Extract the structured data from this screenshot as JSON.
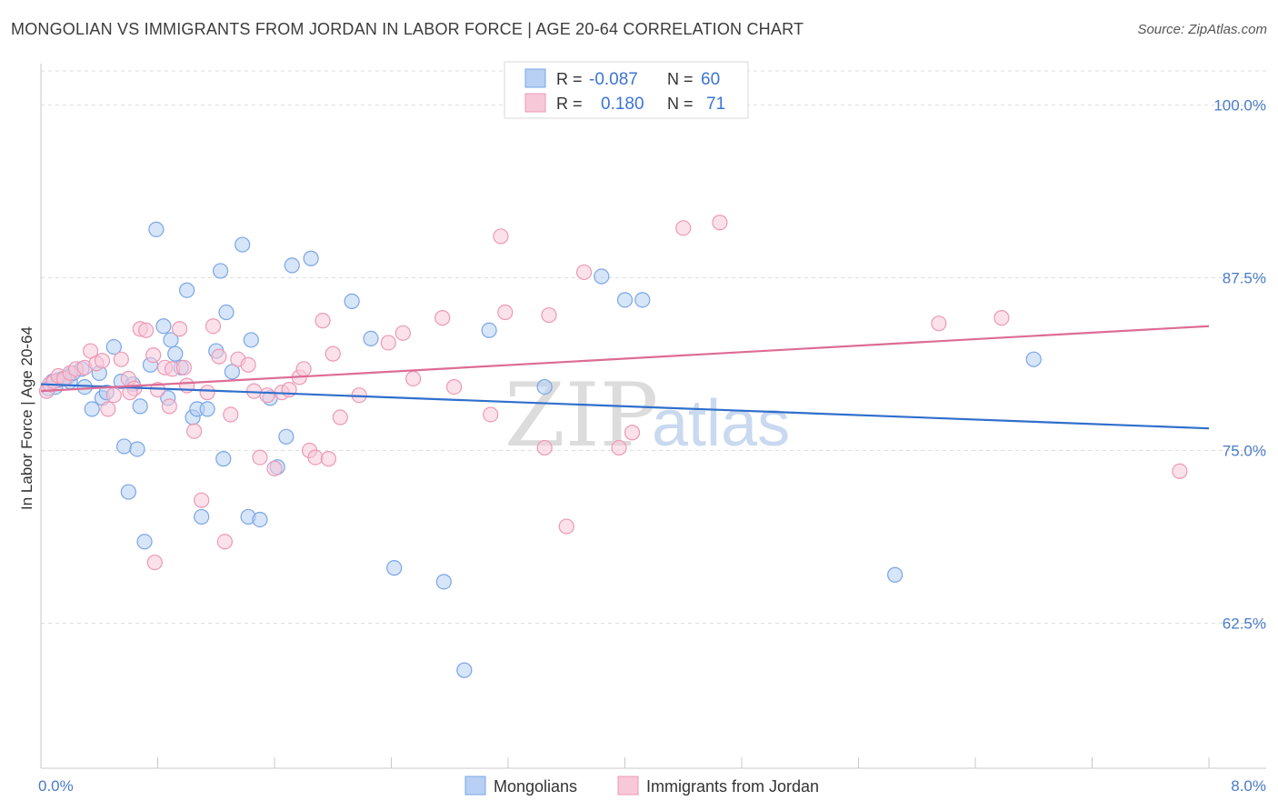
{
  "title": "MONGOLIAN VS IMMIGRANTS FROM JORDAN IN LABOR FORCE | AGE 20-64 CORRELATION CHART",
  "source": "Source: ZipAtlas.com",
  "watermark": {
    "zip": "ZIP",
    "atlas": "atlas"
  },
  "legend_top": [
    {
      "r_label": "R =",
      "r_value": "-0.087",
      "n_label": "N =",
      "n_value": "60"
    },
    {
      "r_label": "R =",
      "r_value": "0.180",
      "n_label": "N =",
      "n_value": "71"
    }
  ],
  "chart_data": {
    "type": "scatter",
    "ylabel": "In Labor Force | Age 20-64",
    "xlim": [
      0,
      8
    ],
    "ylim": [
      52,
      103
    ],
    "x_tick_labels": [
      "0.0%",
      "8.0%"
    ],
    "y_ticks": [
      100,
      87.5,
      75,
      62.5
    ],
    "y_tick_labels": [
      "100.0%",
      "87.5%",
      "75.0%",
      "62.5%"
    ],
    "grid": true,
    "series": [
      {
        "name": "Mongolians",
        "color": "#7aa6e8",
        "fill": "#b7d0f3",
        "trend_color": "#2f6fcc",
        "trend": {
          "x": [
            0,
            8
          ],
          "y": [
            79.8,
            76.6
          ]
        },
        "points": [
          [
            0.05,
            79.5
          ],
          [
            0.08,
            80.0
          ],
          [
            0.1,
            79.6
          ],
          [
            0.12,
            80.1
          ],
          [
            0.15,
            80.2
          ],
          [
            0.18,
            80.3
          ],
          [
            0.2,
            80.0
          ],
          [
            0.22,
            80.6
          ],
          [
            0.28,
            80.9
          ],
          [
            0.3,
            79.6
          ],
          [
            0.35,
            78.0
          ],
          [
            0.4,
            80.6
          ],
          [
            0.42,
            78.8
          ],
          [
            0.45,
            79.2
          ],
          [
            0.5,
            82.5
          ],
          [
            0.55,
            80.0
          ],
          [
            0.57,
            75.3
          ],
          [
            0.6,
            72.0
          ],
          [
            0.63,
            79.8
          ],
          [
            0.66,
            75.1
          ],
          [
            0.68,
            78.2
          ],
          [
            0.71,
            68.4
          ],
          [
            0.75,
            81.2
          ],
          [
            0.79,
            91.0
          ],
          [
            0.84,
            84.0
          ],
          [
            0.87,
            78.8
          ],
          [
            0.89,
            83.0
          ],
          [
            0.92,
            82.0
          ],
          [
            0.96,
            81.0
          ],
          [
            1.0,
            86.6
          ],
          [
            1.04,
            77.4
          ],
          [
            1.07,
            78.0
          ],
          [
            1.1,
            70.2
          ],
          [
            1.14,
            78.0
          ],
          [
            1.2,
            82.2
          ],
          [
            1.23,
            88.0
          ],
          [
            1.25,
            74.4
          ],
          [
            1.27,
            85.0
          ],
          [
            1.31,
            80.7
          ],
          [
            1.38,
            89.9
          ],
          [
            1.42,
            70.2
          ],
          [
            1.44,
            83.0
          ],
          [
            1.5,
            70.0
          ],
          [
            1.57,
            78.8
          ],
          [
            1.62,
            73.8
          ],
          [
            1.68,
            76.0
          ],
          [
            1.72,
            88.4
          ],
          [
            1.85,
            88.9
          ],
          [
            2.13,
            85.8
          ],
          [
            2.26,
            83.1
          ],
          [
            2.42,
            66.5
          ],
          [
            2.76,
            65.5
          ],
          [
            2.9,
            59.1
          ],
          [
            3.07,
            83.7
          ],
          [
            3.45,
            79.6
          ],
          [
            3.84,
            87.6
          ],
          [
            4.0,
            85.9
          ],
          [
            4.12,
            85.9
          ],
          [
            5.85,
            66.0
          ],
          [
            6.8,
            81.6
          ]
        ]
      },
      {
        "name": "Immigrants from Jordan",
        "color": "#ec9ab6",
        "fill": "#f7c8d8",
        "trend_color": "#dd6c95",
        "trend": {
          "x": [
            0,
            8
          ],
          "y": [
            79.3,
            84.0
          ]
        },
        "points": [
          [
            0.04,
            79.3
          ],
          [
            0.06,
            79.8
          ],
          [
            0.09,
            80.0
          ],
          [
            0.12,
            80.4
          ],
          [
            0.16,
            80.2
          ],
          [
            0.2,
            80.6
          ],
          [
            0.24,
            80.9
          ],
          [
            0.3,
            81.0
          ],
          [
            0.34,
            82.2
          ],
          [
            0.38,
            81.3
          ],
          [
            0.42,
            81.5
          ],
          [
            0.46,
            78.0
          ],
          [
            0.5,
            79.0
          ],
          [
            0.55,
            81.6
          ],
          [
            0.6,
            80.2
          ],
          [
            0.64,
            79.5
          ],
          [
            0.68,
            83.8
          ],
          [
            0.72,
            83.7
          ],
          [
            0.77,
            81.9
          ],
          [
            0.8,
            79.4
          ],
          [
            0.85,
            81.0
          ],
          [
            0.88,
            78.2
          ],
          [
            0.9,
            80.9
          ],
          [
            0.95,
            83.8
          ],
          [
            0.98,
            81.0
          ],
          [
            1.0,
            79.7
          ],
          [
            1.05,
            76.4
          ],
          [
            1.1,
            71.4
          ],
          [
            1.14,
            79.2
          ],
          [
            1.18,
            84.0
          ],
          [
            1.22,
            81.8
          ],
          [
            1.26,
            68.4
          ],
          [
            1.3,
            77.6
          ],
          [
            1.35,
            81.6
          ],
          [
            1.42,
            81.2
          ],
          [
            1.46,
            79.3
          ],
          [
            1.5,
            74.5
          ],
          [
            1.55,
            79.0
          ],
          [
            1.6,
            73.7
          ],
          [
            1.65,
            79.2
          ],
          [
            1.7,
            79.4
          ],
          [
            1.77,
            80.3
          ],
          [
            1.8,
            80.9
          ],
          [
            1.84,
            75.0
          ],
          [
            1.88,
            74.5
          ],
          [
            1.93,
            84.4
          ],
          [
            1.97,
            74.4
          ],
          [
            2.0,
            82.0
          ],
          [
            2.05,
            77.4
          ],
          [
            2.18,
            79.0
          ],
          [
            2.38,
            82.8
          ],
          [
            2.48,
            83.5
          ],
          [
            2.55,
            80.2
          ],
          [
            2.75,
            84.6
          ],
          [
            2.83,
            79.6
          ],
          [
            3.08,
            77.6
          ],
          [
            3.15,
            90.5
          ],
          [
            3.18,
            85.0
          ],
          [
            3.45,
            75.2
          ],
          [
            3.48,
            84.8
          ],
          [
            3.6,
            69.5
          ],
          [
            3.72,
            87.9
          ],
          [
            3.96,
            75.2
          ],
          [
            4.05,
            76.3
          ],
          [
            4.4,
            91.1
          ],
          [
            4.65,
            91.5
          ],
          [
            6.15,
            84.2
          ],
          [
            6.58,
            84.6
          ],
          [
            7.8,
            73.5
          ],
          [
            0.78,
            66.9
          ],
          [
            0.61,
            79.2
          ]
        ]
      }
    ]
  }
}
